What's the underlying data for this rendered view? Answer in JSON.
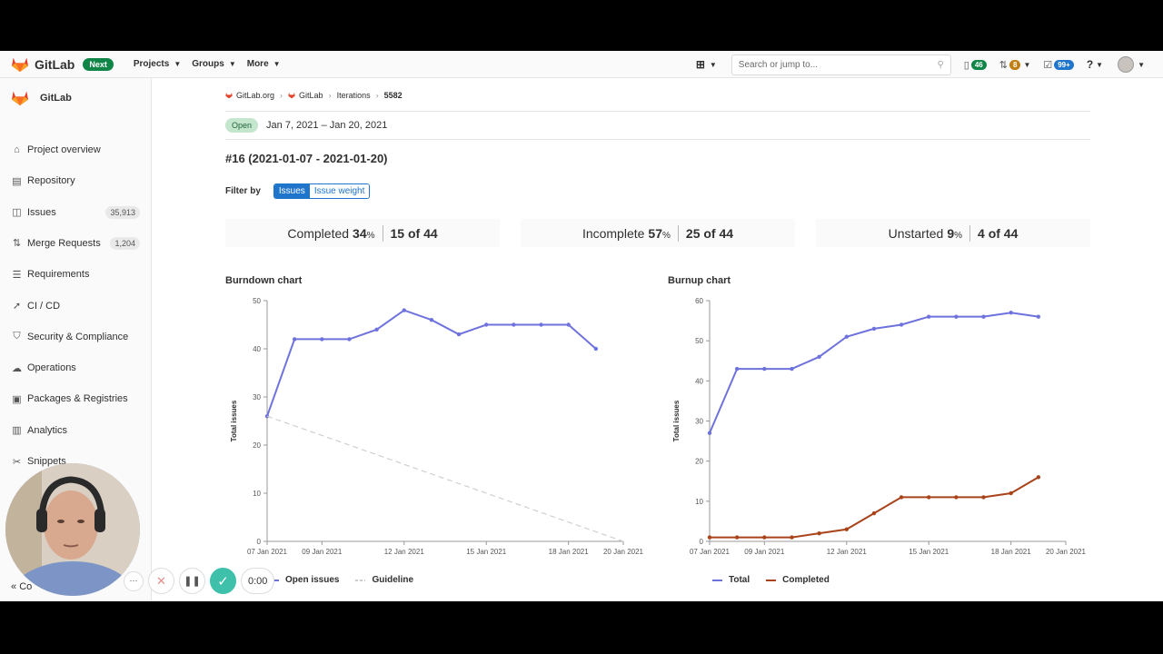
{
  "topbar": {
    "brand": "GitLab",
    "next_badge": "Next",
    "nav": [
      "Projects",
      "Groups",
      "More"
    ],
    "search_placeholder": "Search or jump to...",
    "counters": {
      "issues": "46",
      "merge_requests": "8",
      "todos": "99+"
    }
  },
  "sidebar": {
    "title": "GitLab",
    "items": [
      {
        "label": "Project overview",
        "icon": "home-icon",
        "count": ""
      },
      {
        "label": "Repository",
        "icon": "doc-icon",
        "count": ""
      },
      {
        "label": "Issues",
        "icon": "issues-icon",
        "count": "35,913"
      },
      {
        "label": "Merge Requests",
        "icon": "merge-request-icon",
        "count": "1,204"
      },
      {
        "label": "Requirements",
        "icon": "requirements-icon",
        "count": ""
      },
      {
        "label": "CI / CD",
        "icon": "rocket-icon",
        "count": ""
      },
      {
        "label": "Security & Compliance",
        "icon": "shield-icon",
        "count": ""
      },
      {
        "label": "Operations",
        "icon": "cloud-icon",
        "count": ""
      },
      {
        "label": "Packages & Registries",
        "icon": "package-icon",
        "count": ""
      },
      {
        "label": "Analytics",
        "icon": "chart-icon",
        "count": ""
      },
      {
        "label": "Snippets",
        "icon": "scissors-icon",
        "count": ""
      }
    ],
    "collapse_label": "Co"
  },
  "breadcrumb": [
    "GitLab.org",
    "GitLab",
    "Iterations",
    "5582"
  ],
  "iteration": {
    "status": "Open",
    "dates": "Jan 7, 2021 – Jan 20, 2021",
    "title": "#16 (2021-01-07 - 2021-01-20)"
  },
  "filter": {
    "label": "Filter by",
    "options": [
      "Issues",
      "Issue weight"
    ],
    "active": "Issues"
  },
  "stats": [
    {
      "label": "Completed",
      "pct": "34",
      "count": "15 of 44"
    },
    {
      "label": "Incomplete",
      "pct": "57",
      "count": "25 of 44"
    },
    {
      "label": "Unstarted",
      "pct": "9",
      "count": "4 of 44"
    }
  ],
  "chart_data": [
    {
      "type": "line",
      "title": "Burndown chart",
      "ylabel": "Total issues",
      "ylim": [
        0,
        50
      ],
      "yticks": [
        0,
        10,
        20,
        30,
        40,
        50
      ],
      "x_start": "2021-01-07",
      "xlim": [
        "2021-01-07",
        "2021-01-20"
      ],
      "xticks": [
        "07 Jan 2021",
        "09 Jan 2021",
        "12 Jan 2021",
        "15 Jan 2021",
        "18 Jan 2021",
        "20 Jan 2021"
      ],
      "series": [
        {
          "name": "Open issues",
          "color": "#6e72dc",
          "x": [
            "2021-01-07",
            "2021-01-08",
            "2021-01-09",
            "2021-01-10",
            "2021-01-11",
            "2021-01-12",
            "2021-01-13",
            "2021-01-14",
            "2021-01-15",
            "2021-01-16",
            "2021-01-17",
            "2021-01-18",
            "2021-01-19"
          ],
          "values": [
            26,
            42,
            42,
            42,
            44,
            48,
            46,
            43,
            45,
            45,
            45,
            45,
            40
          ]
        },
        {
          "name": "Guideline",
          "color": "#cfcfcf",
          "dashed": true,
          "x": [
            "2021-01-07",
            "2021-01-20"
          ],
          "values": [
            26,
            0
          ]
        }
      ]
    },
    {
      "type": "line",
      "title": "Burnup chart",
      "ylabel": "Total issues",
      "ylim": [
        0,
        60
      ],
      "yticks": [
        0,
        10,
        20,
        30,
        40,
        50,
        60
      ],
      "x_start": "2021-01-07",
      "xlim": [
        "2021-01-07",
        "2021-01-20"
      ],
      "xticks": [
        "07 Jan 2021",
        "09 Jan 2021",
        "12 Jan 2021",
        "15 Jan 2021",
        "18 Jan 2021",
        "20 Jan 2021"
      ],
      "series": [
        {
          "name": "Total",
          "color": "#6e72dc",
          "x": [
            "2021-01-07",
            "2021-01-08",
            "2021-01-09",
            "2021-01-10",
            "2021-01-11",
            "2021-01-12",
            "2021-01-13",
            "2021-01-14",
            "2021-01-15",
            "2021-01-16",
            "2021-01-17",
            "2021-01-18",
            "2021-01-19"
          ],
          "values": [
            27,
            43,
            43,
            43,
            46,
            51,
            53,
            54,
            56,
            56,
            56,
            57,
            56
          ]
        },
        {
          "name": "Completed",
          "color": "#a8431a",
          "x": [
            "2021-01-07",
            "2021-01-08",
            "2021-01-09",
            "2021-01-10",
            "2021-01-11",
            "2021-01-12",
            "2021-01-13",
            "2021-01-14",
            "2021-01-15",
            "2021-01-16",
            "2021-01-17",
            "2021-01-18",
            "2021-01-19"
          ],
          "values": [
            1,
            1,
            1,
            1,
            2,
            3,
            7,
            11,
            11,
            11,
            11,
            12,
            16
          ]
        }
      ]
    }
  ],
  "recorder": {
    "time": "0:00"
  }
}
